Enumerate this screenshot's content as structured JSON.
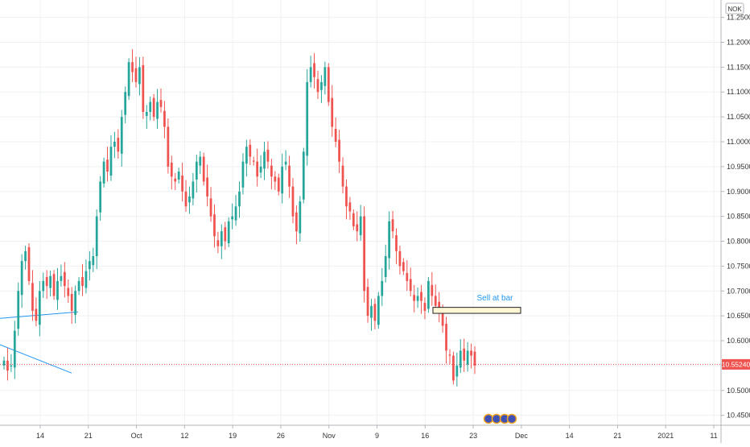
{
  "chart_data": {
    "type": "candlestick",
    "currency": "NOK",
    "y_ticks": [
      "11.25000",
      "11.20000",
      "11.15000",
      "11.10000",
      "11.05000",
      "11.00000",
      "10.95000",
      "10.90000",
      "10.85000",
      "10.80000",
      "10.75000",
      "10.70000",
      "10.65000",
      "10.60000",
      "10.55000",
      "10.50000",
      "10.45000"
    ],
    "ylim": [
      10.43,
      11.285
    ],
    "x_ticks": [
      "14",
      "21",
      "Oct",
      "12",
      "19",
      "26",
      "Nov",
      "9",
      "16",
      "23",
      "Dec",
      "14",
      "21",
      "2021",
      "11"
    ],
    "current_price": "10.55240",
    "colors": {
      "up": "#26a69a",
      "down": "#ef5350",
      "annotation": "#2196f3",
      "box_fill": "#fff6d6",
      "price_line": "#ef5350"
    },
    "annotation": {
      "text": "Sell at bar",
      "price_low": 10.655,
      "price_high": 10.667
    },
    "trendlines": [
      {
        "start": [
          0,
          10.645
        ],
        "end": [
          97,
          10.658
        ]
      },
      {
        "start": [
          0,
          10.592
        ],
        "end": [
          89,
          10.535
        ]
      }
    ],
    "closes": [
      10.56,
      10.54,
      10.55,
      10.62,
      10.7,
      10.76,
      10.78,
      10.72,
      10.66,
      10.64,
      10.7,
      10.72,
      10.71,
      10.73,
      10.69,
      10.72,
      10.73,
      10.71,
      10.69,
      10.66,
      10.7,
      10.72,
      10.71,
      10.74,
      10.76,
      10.77,
      10.85,
      10.92,
      10.96,
      10.94,
      10.99,
      11,
      10.98,
      11.05,
      11.1,
      11.16,
      11.14,
      11.12,
      11.15,
      11.06,
      11.06,
      11.08,
      11.05,
      11.08,
      11.07,
      11.03,
      10.95,
      10.93,
      10.92,
      10.94,
      10.9,
      10.87,
      10.89,
      10.92,
      10.96,
      10.97,
      10.92,
      10.89,
      10.85,
      10.81,
      10.79,
      10.82,
      10.8,
      10.84,
      10.85,
      10.87,
      10.9,
      10.96,
      10.99,
      10.97,
      10.96,
      10.93,
      10.95,
      10.98,
      10.96,
      10.93,
      10.92,
      10.9,
      10.95,
      10.96,
      10.91,
      10.85,
      10.82,
      10.88,
      10.98,
      11.12,
      11.15,
      11.13,
      11.1,
      11.12,
      11.15,
      11.08,
      11.03,
      11,
      10.96,
      10.91,
      10.87,
      10.86,
      10.83,
      10.82,
      10.85,
      10.7,
      10.65,
      10.67,
      10.64,
      10.69,
      10.72,
      10.77,
      10.84,
      10.82,
      10.78,
      10.75,
      10.74,
      10.72,
      10.7,
      10.68,
      10.69,
      10.68,
      10.66,
      10.72,
      10.69,
      10.67,
      10.66,
      10.63,
      10.58,
      10.57,
      10.52,
      10.55,
      10.58,
      10.56,
      10.58,
      10.57,
      10.55
    ]
  }
}
